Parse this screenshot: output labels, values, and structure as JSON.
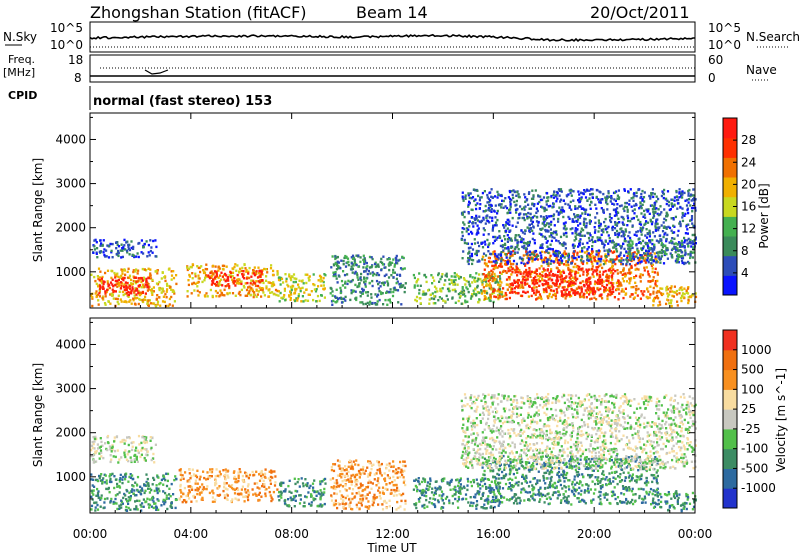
{
  "header": {
    "station": "Zhongshan Station (fitACF)",
    "beam": "Beam 14",
    "date": "20/Oct/2011"
  },
  "nsky_panel": {
    "left_label": "N.Sky",
    "left_ticks": [
      "10^5",
      "10^0"
    ],
    "right_label": "N.Search",
    "right_ticks": [
      "10^5",
      "10^0"
    ]
  },
  "freq_panel": {
    "left_label_top": "Freq.",
    "left_label_bottom": "[MHz]",
    "left_ticks": [
      "18",
      "8"
    ],
    "right_label": "Nave",
    "right_ticks": [
      "60",
      "0"
    ]
  },
  "cpid_panel": {
    "label": "CPID",
    "text": "normal (fast stereo) 153"
  },
  "chart_data": [
    {
      "type": "heatmap",
      "name": "power",
      "ylabel": "Slant Range [km]",
      "ylim": [
        180,
        4600
      ],
      "yticks": [
        "1000",
        "2000",
        "3000",
        "4000"
      ],
      "xlim": [
        0,
        24
      ],
      "colorbar_label": "Power [dB]",
      "colorbar_ticks": [
        "28",
        "24",
        "20",
        "16",
        "12",
        "8",
        "4"
      ],
      "colors": [
        "#0a14ff",
        "#2d4db8",
        "#3a8a5a",
        "#44b050",
        "#c8d820",
        "#f0b000",
        "#f07000",
        "#ff3000",
        "#ff1a10"
      ],
      "bands": [
        {
          "x": [
            0.0,
            2.6
          ],
          "y": [
            1350,
            1750
          ],
          "level": 1
        },
        {
          "x": [
            0.0,
            3.4
          ],
          "y": [
            250,
            1100
          ],
          "level": 5
        },
        {
          "x": [
            0.3,
            2.3
          ],
          "y": [
            500,
            900
          ],
          "level": 8
        },
        {
          "x": [
            3.8,
            7.4
          ],
          "y": [
            450,
            1200
          ],
          "level": 5
        },
        {
          "x": [
            4.6,
            6.8
          ],
          "y": [
            700,
            1050
          ],
          "level": 8
        },
        {
          "x": [
            7.4,
            9.3
          ],
          "y": [
            350,
            1000
          ],
          "level": 4
        },
        {
          "x": [
            9.5,
            12.5
          ],
          "y": [
            280,
            1400
          ],
          "level": 2
        },
        {
          "x": [
            12.8,
            16.3
          ],
          "y": [
            300,
            1000
          ],
          "level": 3
        },
        {
          "x": [
            15.5,
            22.5
          ],
          "y": [
            400,
            1500
          ],
          "level": 6
        },
        {
          "x": [
            16.6,
            20.8
          ],
          "y": [
            500,
            1100
          ],
          "level": 8
        },
        {
          "x": [
            14.7,
            24.0
          ],
          "y": [
            1200,
            2900
          ],
          "level": 1
        },
        {
          "x": [
            21.3,
            24.0
          ],
          "y": [
            1300,
            1750
          ],
          "level": 2
        },
        {
          "x": [
            22.3,
            24.0
          ],
          "y": [
            250,
            700
          ],
          "level": 5
        }
      ]
    },
    {
      "type": "heatmap",
      "name": "velocity",
      "ylabel": "Slant Range [km]",
      "ylim": [
        180,
        4600
      ],
      "yticks": [
        "1000",
        "2000",
        "3000",
        "4000"
      ],
      "xlim": [
        0,
        24
      ],
      "xticks": [
        "00:00",
        "04:00",
        "08:00",
        "12:00",
        "16:00",
        "20:00",
        "00:00"
      ],
      "xlabel": "Time UT",
      "colorbar_label": "Velocity [m s^-1]",
      "colorbar_ticks": [
        "1000",
        "500",
        "100",
        "25",
        "-25",
        "-100",
        "-500",
        "-1000"
      ],
      "colors": [
        "#2233cc",
        "#2d6aa0",
        "#3c8c64",
        "#52c04a",
        "#c8c8c0",
        "#f8dca0",
        "#f89020",
        "#f07010",
        "#f03020"
      ],
      "bands": [
        {
          "x": [
            0.0,
            2.6
          ],
          "y": [
            1350,
            1950
          ],
          "level": 4
        },
        {
          "x": [
            0.0,
            3.4
          ],
          "y": [
            250,
            1100
          ],
          "level": 2
        },
        {
          "x": [
            3.5,
            7.4
          ],
          "y": [
            450,
            1200
          ],
          "level": 6
        },
        {
          "x": [
            7.4,
            9.3
          ],
          "y": [
            350,
            1000
          ],
          "level": 2
        },
        {
          "x": [
            9.5,
            12.5
          ],
          "y": [
            280,
            1400
          ],
          "level": 6
        },
        {
          "x": [
            12.8,
            16.3
          ],
          "y": [
            300,
            1000
          ],
          "level": 2
        },
        {
          "x": [
            15.5,
            22.5
          ],
          "y": [
            400,
            1500
          ],
          "level": 2
        },
        {
          "x": [
            14.7,
            24.0
          ],
          "y": [
            1200,
            2900
          ],
          "level": 4
        },
        {
          "x": [
            22.3,
            24.0
          ],
          "y": [
            250,
            700
          ],
          "level": 2
        }
      ]
    }
  ]
}
